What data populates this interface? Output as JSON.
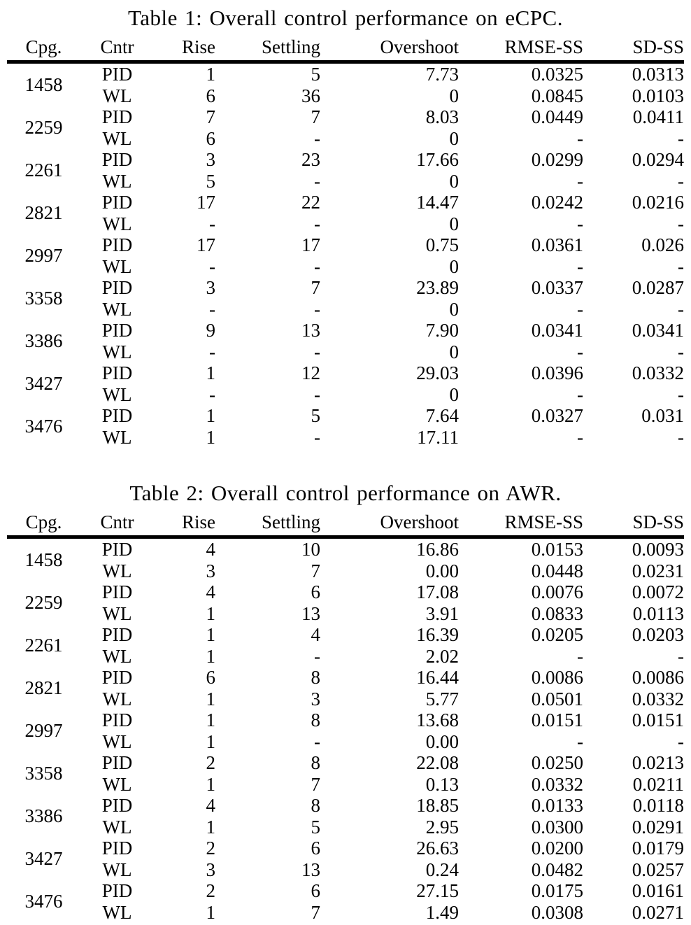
{
  "page": {
    "background_color": "#ffffff",
    "text_color": "#000000"
  },
  "tables": [
    {
      "title": "Table 1: Overall control performance on eCPC.",
      "columns": [
        "Cpg.",
        "Cntr",
        "Rise",
        "Settling",
        "Overshoot",
        "RMSE-SS",
        "SD-SS"
      ],
      "groups": [
        {
          "cpg": "1458",
          "rows": [
            [
              "PID",
              "1",
              "5",
              "7.73",
              "0.0325",
              "0.0313"
            ],
            [
              "WL",
              "6",
              "36",
              "0",
              "0.0845",
              "0.0103"
            ]
          ]
        },
        {
          "cpg": "2259",
          "rows": [
            [
              "PID",
              "7",
              "7",
              "8.03",
              "0.0449",
              "0.0411"
            ],
            [
              "WL",
              "6",
              "-",
              "0",
              "-",
              "-"
            ]
          ]
        },
        {
          "cpg": "2261",
          "rows": [
            [
              "PID",
              "3",
              "23",
              "17.66",
              "0.0299",
              "0.0294"
            ],
            [
              "WL",
              "5",
              "-",
              "0",
              "-",
              "-"
            ]
          ]
        },
        {
          "cpg": "2821",
          "rows": [
            [
              "PID",
              "17",
              "22",
              "14.47",
              "0.0242",
              "0.0216"
            ],
            [
              "WL",
              "-",
              "-",
              "0",
              "-",
              "-"
            ]
          ]
        },
        {
          "cpg": "2997",
          "rows": [
            [
              "PID",
              "17",
              "17",
              "0.75",
              "0.0361",
              "0.026"
            ],
            [
              "WL",
              "-",
              "-",
              "0",
              "-",
              "-"
            ]
          ]
        },
        {
          "cpg": "3358",
          "rows": [
            [
              "PID",
              "3",
              "7",
              "23.89",
              "0.0337",
              "0.0287"
            ],
            [
              "WL",
              "-",
              "-",
              "0",
              "-",
              "-"
            ]
          ]
        },
        {
          "cpg": "3386",
          "rows": [
            [
              "PID",
              "9",
              "13",
              "7.90",
              "0.0341",
              "0.0341"
            ],
            [
              "WL",
              "-",
              "-",
              "0",
              "-",
              "-"
            ]
          ]
        },
        {
          "cpg": "3427",
          "rows": [
            [
              "PID",
              "1",
              "12",
              "29.03",
              "0.0396",
              "0.0332"
            ],
            [
              "WL",
              "-",
              "-",
              "0",
              "-",
              "-"
            ]
          ]
        },
        {
          "cpg": "3476",
          "rows": [
            [
              "PID",
              "1",
              "5",
              "7.64",
              "0.0327",
              "0.031"
            ],
            [
              "WL",
              "1",
              "-",
              "17.11",
              "-",
              "-"
            ]
          ]
        }
      ]
    },
    {
      "title": "Table 2: Overall control performance on AWR.",
      "columns": [
        "Cpg.",
        "Cntr",
        "Rise",
        "Settling",
        "Overshoot",
        "RMSE-SS",
        "SD-SS"
      ],
      "groups": [
        {
          "cpg": "1458",
          "rows": [
            [
              "PID",
              "4",
              "10",
              "16.86",
              "0.0153",
              "0.0093"
            ],
            [
              "WL",
              "3",
              "7",
              "0.00",
              "0.0448",
              "0.0231"
            ]
          ]
        },
        {
          "cpg": "2259",
          "rows": [
            [
              "PID",
              "4",
              "6",
              "17.08",
              "0.0076",
              "0.0072"
            ],
            [
              "WL",
              "1",
              "13",
              "3.91",
              "0.0833",
              "0.0113"
            ]
          ]
        },
        {
          "cpg": "2261",
          "rows": [
            [
              "PID",
              "1",
              "4",
              "16.39",
              "0.0205",
              "0.0203"
            ],
            [
              "WL",
              "1",
              "-",
              "2.02",
              "-",
              "-"
            ]
          ]
        },
        {
          "cpg": "2821",
          "rows": [
            [
              "PID",
              "6",
              "8",
              "16.44",
              "0.0086",
              "0.0086"
            ],
            [
              "WL",
              "1",
              "3",
              "5.77",
              "0.0501",
              "0.0332"
            ]
          ]
        },
        {
          "cpg": "2997",
          "rows": [
            [
              "PID",
              "1",
              "8",
              "13.68",
              "0.0151",
              "0.0151"
            ],
            [
              "WL",
              "1",
              "-",
              "0.00",
              "-",
              "-"
            ]
          ]
        },
        {
          "cpg": "3358",
          "rows": [
            [
              "PID",
              "2",
              "8",
              "22.08",
              "0.0250",
              "0.0213"
            ],
            [
              "WL",
              "1",
              "7",
              "0.13",
              "0.0332",
              "0.0211"
            ]
          ]
        },
        {
          "cpg": "3386",
          "rows": [
            [
              "PID",
              "4",
              "8",
              "18.85",
              "0.0133",
              "0.0118"
            ],
            [
              "WL",
              "1",
              "5",
              "2.95",
              "0.0300",
              "0.0291"
            ]
          ]
        },
        {
          "cpg": "3427",
          "rows": [
            [
              "PID",
              "2",
              "6",
              "26.63",
              "0.0200",
              "0.0179"
            ],
            [
              "WL",
              "3",
              "13",
              "0.24",
              "0.0482",
              "0.0257"
            ]
          ]
        },
        {
          "cpg": "3476",
          "rows": [
            [
              "PID",
              "2",
              "6",
              "27.15",
              "0.0175",
              "0.0161"
            ],
            [
              "WL",
              "1",
              "7",
              "1.49",
              "0.0308",
              "0.0271"
            ]
          ]
        }
      ]
    }
  ]
}
